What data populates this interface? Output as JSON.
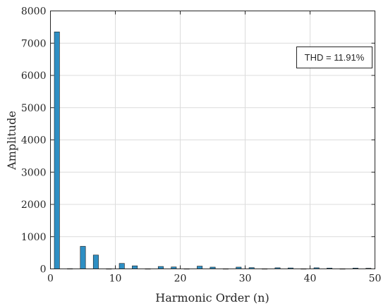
{
  "chart_data": {
    "type": "bar",
    "xlabel": "Harmonic Order (n)",
    "ylabel": "Amplitude",
    "xlim": [
      0,
      50
    ],
    "ylim": [
      0,
      8000
    ],
    "xticks": [
      0,
      10,
      20,
      30,
      40,
      50
    ],
    "yticks": [
      0,
      1000,
      2000,
      3000,
      4000,
      5000,
      6000,
      7000,
      8000
    ],
    "grid": true,
    "bar_color": "#2e8fc4",
    "annotation": "THD = 11.91%",
    "annotation_position": "top-right",
    "x": [
      1,
      3,
      5,
      7,
      9,
      11,
      13,
      15,
      17,
      19,
      21,
      23,
      25,
      27,
      29,
      31,
      33,
      35,
      37,
      39,
      41,
      43,
      45,
      47,
      49
    ],
    "values": [
      7350,
      10,
      700,
      430,
      8,
      170,
      95,
      8,
      75,
      60,
      8,
      85,
      55,
      8,
      55,
      40,
      8,
      35,
      30,
      8,
      35,
      25,
      8,
      25,
      20
    ]
  }
}
